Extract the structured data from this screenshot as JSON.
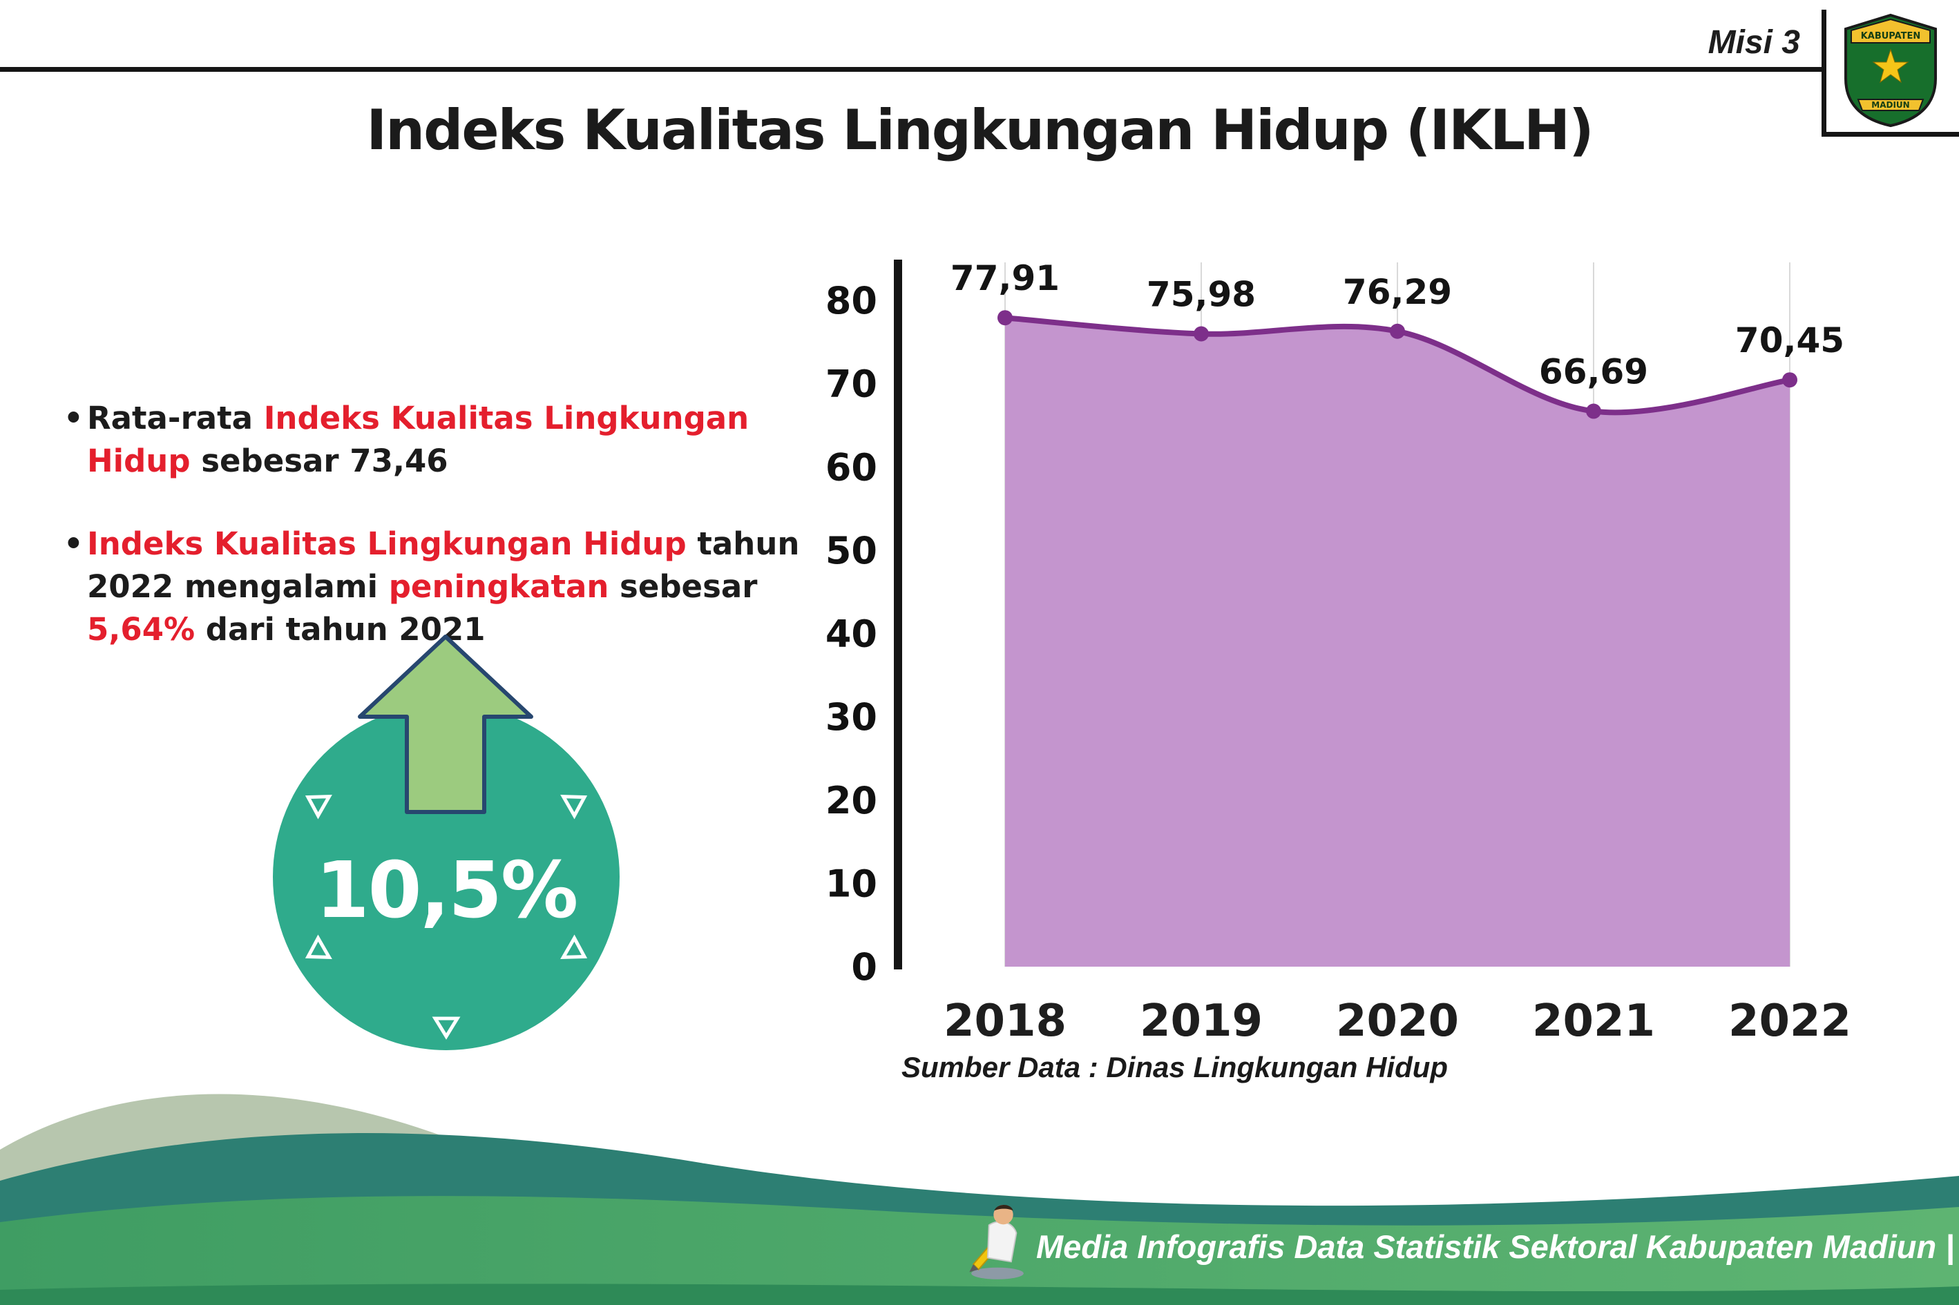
{
  "header": {
    "misi": "Misi 3",
    "title": "Indeks Kualitas Lingkungan Hidup (IKLH)",
    "logo": {
      "top_text": "KABUPATEN",
      "bottom_text": "MADIUN"
    }
  },
  "bullets": [
    {
      "segments": [
        {
          "text": "Rata-rata ",
          "colorClass": "seg-dark"
        },
        {
          "text": "Indeks Kualitas Lingkungan Hidup",
          "colorClass": "seg-red"
        },
        {
          "text": " sebesar 73,46",
          "colorClass": "seg-dark"
        }
      ]
    },
    {
      "segments": [
        {
          "text": "Indeks Kualitas Lingkungan Hidup",
          "colorClass": "seg-red"
        },
        {
          "text": " tahun 2022 mengalami ",
          "colorClass": "seg-dark"
        },
        {
          "text": "peningkatan",
          "colorClass": "seg-red"
        },
        {
          "text": " sebesar ",
          "colorClass": "seg-dark"
        },
        {
          "text": "5,64%",
          "colorClass": "seg-red"
        },
        {
          "text": " dari tahun 2021",
          "colorClass": "seg-dark"
        }
      ]
    }
  ],
  "badge": {
    "value": "10,5%"
  },
  "chart_data": {
    "type": "area",
    "title": "Indeks Kualitas Lingkungan Hidup (IKLH)",
    "categories": [
      "2018",
      "2019",
      "2020",
      "2021",
      "2022"
    ],
    "values": [
      77.91,
      75.98,
      76.29,
      66.69,
      70.45
    ],
    "point_labels": [
      "77,91",
      "75,98",
      "76,29",
      "66,69",
      "70,45"
    ],
    "xlabel": "",
    "ylabel": "",
    "ylim": [
      0,
      80
    ],
    "yticks": [
      0,
      10,
      20,
      30,
      40,
      50,
      60,
      70,
      80
    ],
    "grid": "vertical-light",
    "legend": "none",
    "colors": {
      "area": "#c495ce",
      "line": "#7d2f8a",
      "marker": "#7d2f8a"
    },
    "source": "Sumber Data : Dinas Lingkungan Hidup"
  },
  "footer": {
    "credit": "Media Infografis Data Statistik Sektoral Kabupaten Madiun |"
  }
}
